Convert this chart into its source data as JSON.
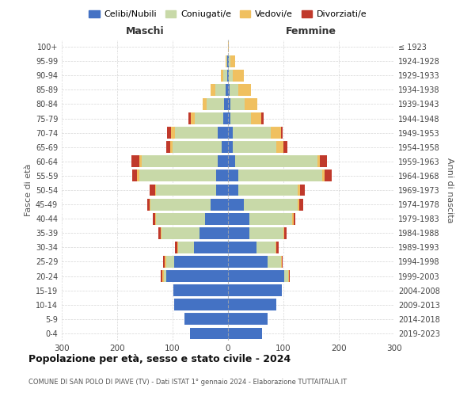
{
  "age_groups": [
    "0-4",
    "5-9",
    "10-14",
    "15-19",
    "20-24",
    "25-29",
    "30-34",
    "35-39",
    "40-44",
    "45-49",
    "50-54",
    "55-59",
    "60-64",
    "65-69",
    "70-74",
    "75-79",
    "80-84",
    "85-89",
    "90-94",
    "95-99",
    "100+"
  ],
  "birth_years": [
    "2019-2023",
    "2014-2018",
    "2009-2013",
    "2004-2008",
    "1999-2003",
    "1994-1998",
    "1989-1993",
    "1984-1988",
    "1979-1983",
    "1974-1978",
    "1969-1973",
    "1964-1968",
    "1959-1963",
    "1954-1958",
    "1949-1953",
    "1944-1948",
    "1939-1943",
    "1934-1938",
    "1929-1933",
    "1924-1928",
    "≤ 1923"
  ],
  "maschi": {
    "celibi": [
      68,
      78,
      97,
      98,
      112,
      97,
      62,
      52,
      42,
      32,
      22,
      22,
      18,
      12,
      18,
      8,
      7,
      5,
      2,
      1,
      0
    ],
    "coniugati": [
      0,
      0,
      0,
      0,
      4,
      14,
      28,
      68,
      88,
      108,
      108,
      138,
      138,
      88,
      78,
      52,
      32,
      18,
      7,
      2,
      0
    ],
    "vedovi": [
      0,
      0,
      0,
      0,
      2,
      4,
      2,
      2,
      2,
      2,
      2,
      4,
      4,
      4,
      7,
      7,
      7,
      9,
      4,
      2,
      0
    ],
    "divorziati": [
      0,
      0,
      0,
      0,
      4,
      2,
      4,
      4,
      4,
      4,
      9,
      9,
      14,
      7,
      7,
      4,
      0,
      0,
      0,
      0,
      0
    ]
  },
  "femmine": {
    "nubili": [
      62,
      72,
      87,
      97,
      102,
      72,
      52,
      38,
      38,
      28,
      18,
      18,
      13,
      9,
      9,
      4,
      4,
      3,
      2,
      1,
      0
    ],
    "coniugate": [
      0,
      0,
      0,
      0,
      6,
      23,
      33,
      62,
      78,
      98,
      108,
      152,
      148,
      78,
      68,
      38,
      26,
      16,
      7,
      3,
      0
    ],
    "vedove": [
      0,
      0,
      0,
      0,
      2,
      2,
      2,
      2,
      2,
      2,
      4,
      4,
      4,
      13,
      18,
      18,
      23,
      23,
      19,
      9,
      1
    ],
    "divorziate": [
      0,
      0,
      0,
      0,
      2,
      2,
      4,
      4,
      4,
      7,
      9,
      13,
      14,
      7,
      4,
      4,
      0,
      0,
      0,
      0,
      0
    ]
  },
  "colors": {
    "celibi": "#4472C4",
    "coniugati": "#c8d9a8",
    "vedovi": "#f0c060",
    "divorziati": "#c0392b"
  },
  "xlim": 300,
  "title": "Popolazione per età, sesso e stato civile - 2024",
  "subtitle": "COMUNE DI SAN POLO DI PIAVE (TV) - Dati ISTAT 1° gennaio 2024 - Elaborazione TUTTAITALIA.IT",
  "xlabel_left": "Maschi",
  "xlabel_right": "Femmine",
  "ylabel_left": "Fasce di età",
  "ylabel_right": "Anni di nascita",
  "bg_color": "#ffffff",
  "grid_color": "#cccccc"
}
